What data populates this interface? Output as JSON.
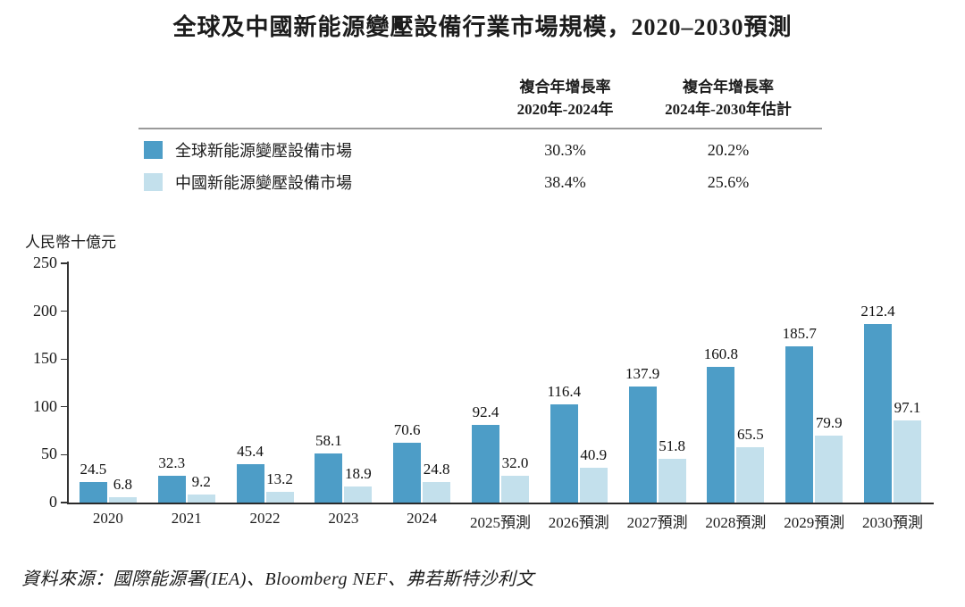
{
  "title": "全球及中國新能源變壓設備行業市場規模，2020–2030預測",
  "cagr_table": {
    "col1_header_line1": "複合年增長率",
    "col1_header_line2": "2020年-2024年",
    "col2_header_line1": "複合年增長率",
    "col2_header_line2": "2024年-2030年估計",
    "rows": [
      {
        "label": "全球新能源變壓設備市場",
        "color": "#4D9DC7",
        "cagr_2020_2024": "30.3%",
        "cagr_2024_2030": "20.2%"
      },
      {
        "label": "中國新能源變壓設備市場",
        "color": "#C3E0EC",
        "cagr_2020_2024": "38.4%",
        "cagr_2024_2030": "25.6%"
      }
    ]
  },
  "chart_data": {
    "type": "bar",
    "title": "全球及中國新能源變壓設備行業市場規模，2020–2030預測",
    "ylabel": "人民幣十億元",
    "xlabel": "",
    "ylim": [
      0,
      250
    ],
    "yticks": [
      0,
      50,
      100,
      150,
      200,
      250
    ],
    "grid": false,
    "legend_position": "top-table",
    "categories": [
      "2020",
      "2021",
      "2022",
      "2023",
      "2024",
      "2025預測",
      "2026預測",
      "2027預測",
      "2028預測",
      "2029預測",
      "2030預測"
    ],
    "series": [
      {
        "name": "全球新能源變壓設備市場",
        "color": "#4D9DC7",
        "values": [
          24.5,
          32.3,
          45.4,
          58.1,
          70.6,
          92.4,
          116.4,
          137.9,
          160.8,
          185.7,
          212.4
        ]
      },
      {
        "name": "中國新能源變壓設備市場",
        "color": "#C3E0EC",
        "values": [
          6.8,
          9.2,
          13.2,
          18.9,
          24.8,
          32.0,
          40.9,
          51.8,
          65.5,
          79.9,
          97.1
        ]
      }
    ]
  },
  "source": "資料來源：國際能源署(IEA)、Bloomberg NEF、弗若斯特沙利文"
}
